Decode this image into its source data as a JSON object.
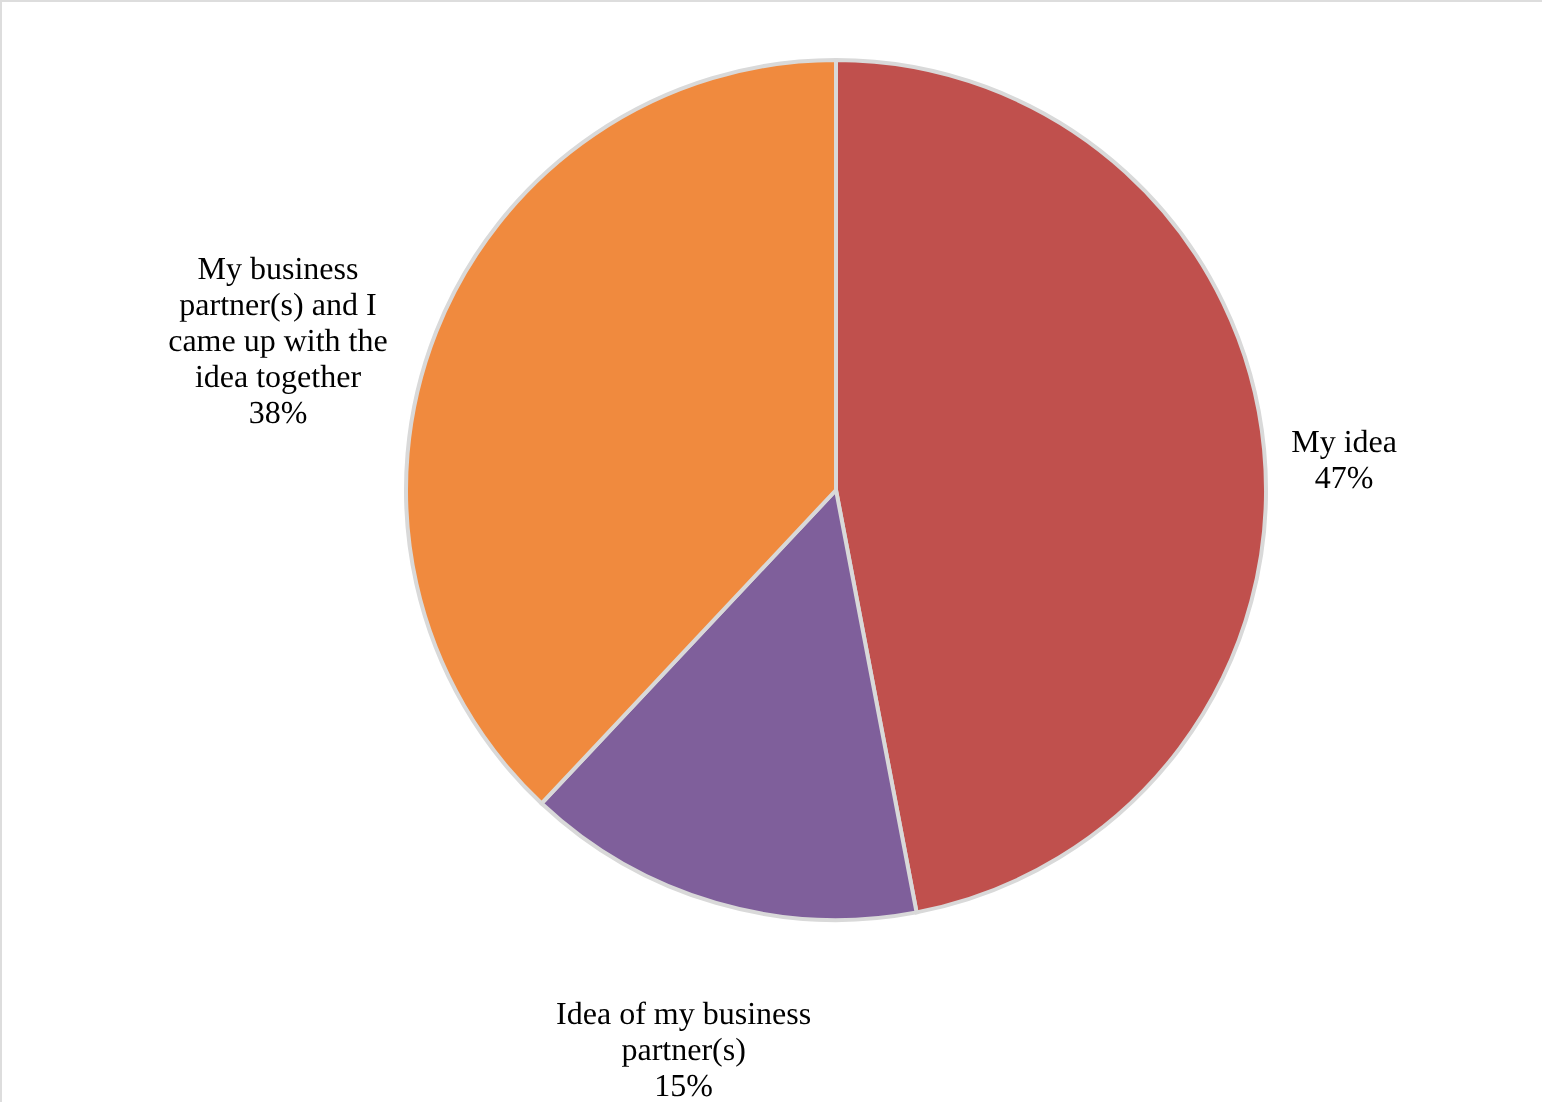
{
  "chart_data": {
    "type": "pie",
    "categories": [
      "My idea",
      "Idea of my business partner(s)",
      "My business partner(s) and I came up with the idea together"
    ],
    "values": [
      47,
      15,
      38
    ],
    "colors": [
      "#c0504d",
      "#7f5f9b",
      "#f08a3e"
    ],
    "value_labels": [
      "47%",
      "15%",
      "38%"
    ]
  }
}
